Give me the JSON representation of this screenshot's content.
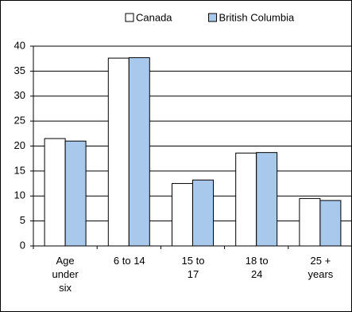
{
  "chart_data": {
    "type": "bar",
    "categories": [
      "Age under six",
      "6 to 14",
      "15 to 17",
      "18 to 24",
      "25 + years"
    ],
    "series": [
      {
        "name": "Canada",
        "color": "#ffffff",
        "values": [
          21.5,
          37.6,
          12.5,
          18.6,
          9.5
        ]
      },
      {
        "name": "British Columbia",
        "color": "#a9c9ec",
        "values": [
          21.0,
          37.7,
          13.2,
          18.7,
          9.1
        ]
      }
    ],
    "ylim": [
      0,
      40
    ],
    "yticks": [
      0,
      5,
      10,
      15,
      20,
      25,
      30,
      35,
      40
    ],
    "grid": true,
    "legend": "top"
  }
}
